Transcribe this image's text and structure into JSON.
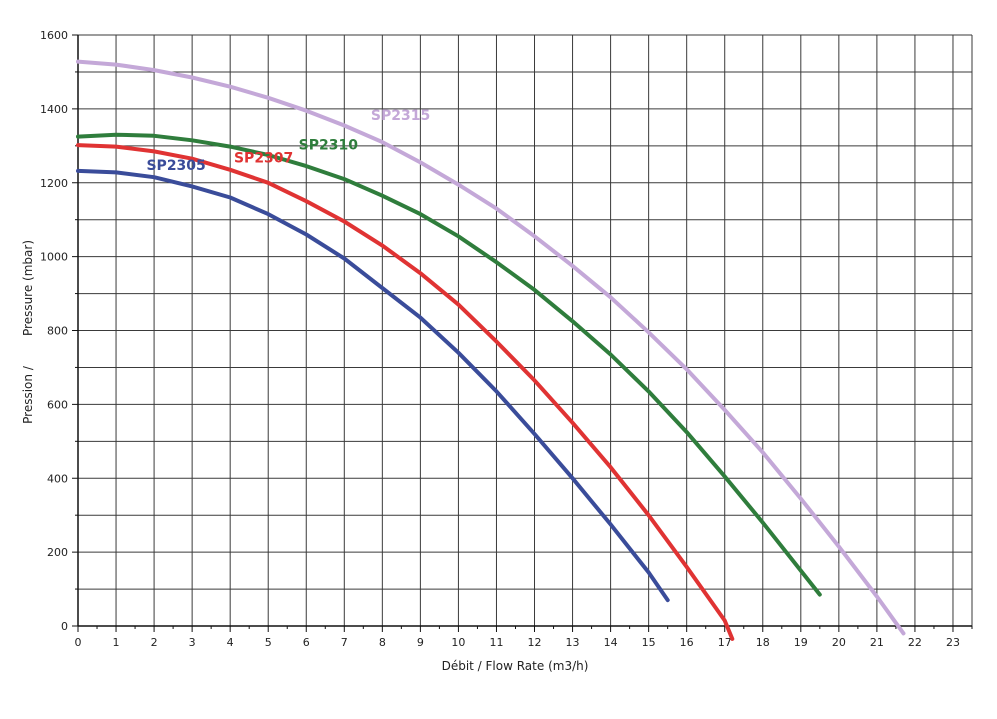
{
  "chart_data": {
    "type": "line",
    "title": "",
    "xlabel": "Débit / Flow Rate (m3/h)",
    "ylabel": "Pressure (mbar)",
    "ylabel_prefix": "Pression /",
    "xlim": [
      0,
      23.5
    ],
    "ylim": [
      0,
      1600
    ],
    "x_ticks": [
      0,
      1,
      2,
      3,
      4,
      5,
      6,
      7,
      8,
      9,
      10,
      11,
      12,
      13,
      14,
      15,
      16,
      17,
      18,
      19,
      20,
      21,
      22,
      23
    ],
    "y_ticks": [
      0,
      200,
      400,
      600,
      800,
      1000,
      1200,
      1400,
      1600
    ],
    "grid": true,
    "series": [
      {
        "name": "SP2305",
        "color": "#3a4c9a",
        "x": [
          0,
          1,
          2,
          3,
          4,
          5,
          6,
          7,
          8,
          9,
          10,
          11,
          12,
          13,
          14,
          15,
          15.5
        ],
        "y": [
          1232,
          1228,
          1215,
          1190,
          1160,
          1115,
          1060,
          995,
          915,
          835,
          740,
          635,
          520,
          400,
          275,
          145,
          70
        ],
        "label": "SP2305"
      },
      {
        "name": "SP2307",
        "color": "#e03333",
        "x": [
          0,
          1,
          2,
          3,
          4,
          5,
          6,
          7,
          8,
          9,
          10,
          11,
          12,
          13,
          14,
          15,
          16,
          17,
          17.2
        ],
        "y": [
          1302,
          1298,
          1285,
          1265,
          1235,
          1200,
          1150,
          1095,
          1030,
          955,
          870,
          770,
          665,
          550,
          430,
          300,
          160,
          15,
          -35
        ],
        "label": "SP2307"
      },
      {
        "name": "SP2310",
        "color": "#2f7d3c",
        "x": [
          0,
          1,
          2,
          3,
          4,
          5,
          6,
          7,
          8,
          9,
          10,
          11,
          12,
          13,
          14,
          15,
          16,
          17,
          18,
          19,
          19.5
        ],
        "y": [
          1325,
          1330,
          1327,
          1315,
          1298,
          1275,
          1245,
          1210,
          1165,
          1115,
          1055,
          985,
          910,
          825,
          735,
          635,
          525,
          405,
          280,
          150,
          85
        ],
        "label": "SP2310"
      },
      {
        "name": "SP2315",
        "color": "#c4a8d8",
        "x": [
          0,
          1,
          2,
          3,
          4,
          5,
          6,
          7,
          8,
          9,
          10,
          11,
          12,
          13,
          14,
          15,
          16,
          17,
          18,
          19,
          20,
          21,
          21.7
        ],
        "y": [
          1528,
          1520,
          1505,
          1485,
          1460,
          1430,
          1395,
          1355,
          1310,
          1255,
          1195,
          1130,
          1055,
          975,
          890,
          795,
          695,
          585,
          470,
          345,
          215,
          80,
          -20
        ],
        "label": "SP2315"
      }
    ]
  }
}
